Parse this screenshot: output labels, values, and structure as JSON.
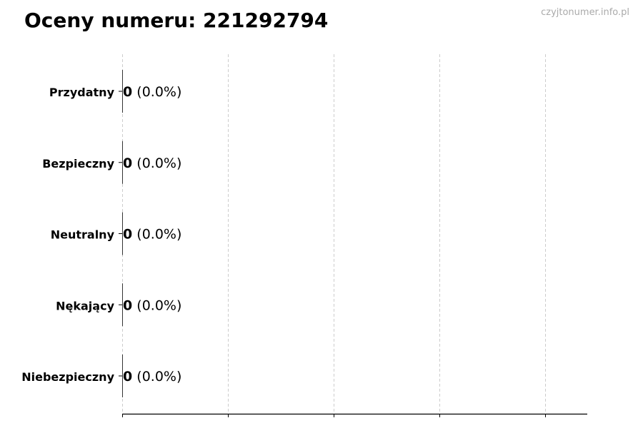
{
  "watermark": "czyjtonumer.info.pl",
  "chart_data": {
    "type": "bar",
    "orientation": "horizontal",
    "title": "Oceny numeru: 221292794",
    "xlabel": "",
    "ylabel": "",
    "categories": [
      "Przydatny",
      "Bezpieczny",
      "Neutralny",
      "Nękający",
      "Niebezpieczny"
    ],
    "values": [
      0,
      0,
      0,
      0,
      0
    ],
    "data_labels": [
      {
        "count": "0",
        "percent": "(0.0%)"
      },
      {
        "count": "0",
        "percent": "(0.0%)"
      },
      {
        "count": "0",
        "percent": "(0.0%)"
      },
      {
        "count": "0",
        "percent": "(0.0%)"
      },
      {
        "count": "0",
        "percent": "(0.0%)"
      }
    ],
    "xlim": [
      0,
      4.4
    ],
    "x_tick_labels_shown": false,
    "grid": "vertical dashed",
    "bar_color": "#333333",
    "grid_color": "#cccccc"
  }
}
